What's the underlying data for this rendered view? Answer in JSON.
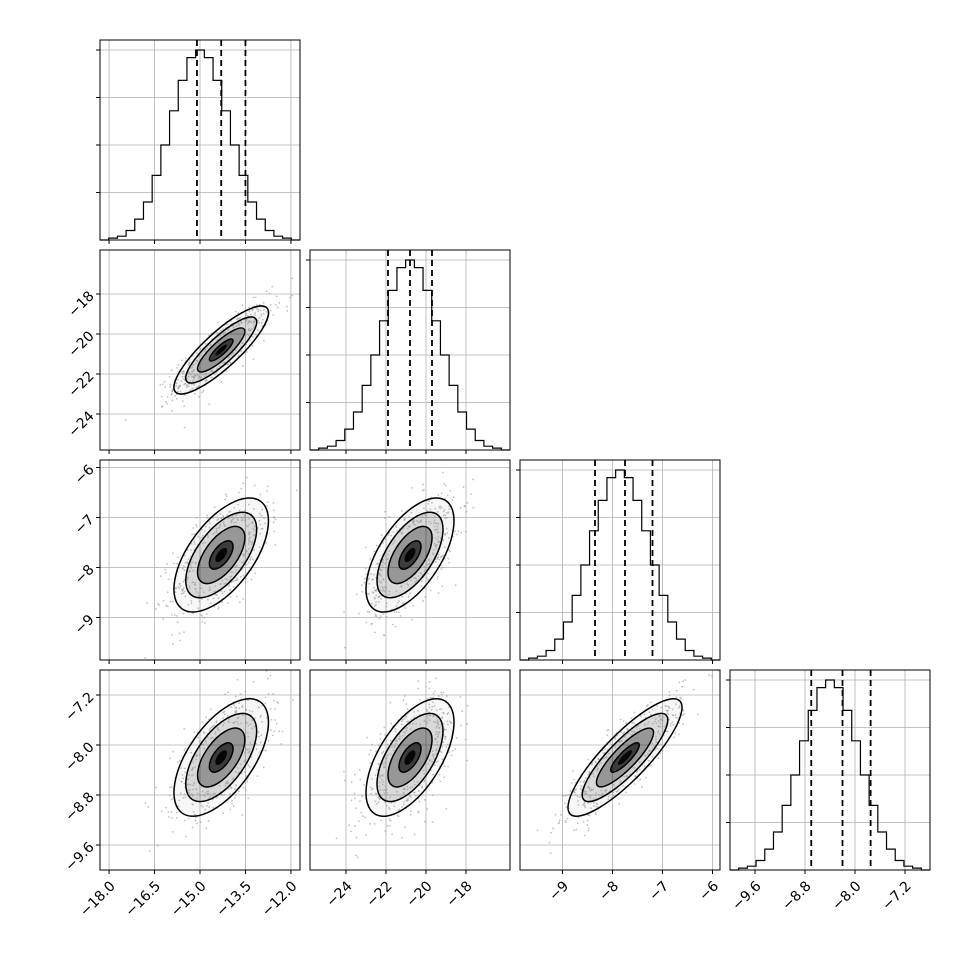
{
  "chart_data": {
    "type": "corner",
    "grid": true,
    "variables": [
      {
        "range": [
          -18.3,
          -11.7
        ],
        "ticks": [
          -18.0,
          -16.5,
          -15.0,
          -13.5,
          -12.0
        ],
        "tick_labels": [
          "−18.0",
          "−16.5",
          "−15.0",
          "−13.5",
          "−12.0"
        ],
        "quantiles": [
          -15.1,
          -14.3,
          -13.5
        ],
        "median": -14.3,
        "sigma": 0.78
      },
      {
        "range": [
          -25.8,
          -15.8
        ],
        "ticks": [
          -24,
          -22,
          -20,
          -18
        ],
        "tick_labels": [
          "−24",
          "−22",
          "−20",
          "−18"
        ],
        "quantiles": [
          -21.9,
          -20.8,
          -19.7
        ],
        "median": -20.8,
        "sigma": 1.1
      },
      {
        "range": [
          -9.85,
          -5.85
        ],
        "ticks": [
          -9,
          -8,
          -7,
          -6
        ],
        "tick_labels": [
          "−9",
          "−8",
          "−7",
          "−6"
        ],
        "quantiles": [
          -8.35,
          -7.75,
          -7.2
        ],
        "median": -7.75,
        "sigma": 0.57
      },
      {
        "range": [
          -10.0,
          -6.8
        ],
        "ticks": [
          -9.6,
          -8.8,
          -8.0,
          -7.2
        ],
        "tick_labels": [
          "−9.6",
          "−8.8",
          "−8.0",
          "−7.2"
        ],
        "quantiles": [
          -8.7,
          -8.2,
          -7.75
        ],
        "median": -8.2,
        "sigma": 0.47
      }
    ],
    "hist_counts": [
      [
        0.0,
        0.01,
        0.02,
        0.05,
        0.11,
        0.2,
        0.34,
        0.5,
        0.68,
        0.84,
        0.96,
        1.0,
        0.96,
        0.84,
        0.68,
        0.5,
        0.34,
        0.2,
        0.11,
        0.05,
        0.02,
        0.01,
        0.0
      ],
      [
        0.0,
        0.01,
        0.02,
        0.05,
        0.11,
        0.2,
        0.34,
        0.5,
        0.68,
        0.84,
        0.96,
        1.0,
        0.96,
        0.84,
        0.68,
        0.5,
        0.34,
        0.2,
        0.11,
        0.05,
        0.02,
        0.01,
        0.0
      ],
      [
        0.0,
        0.01,
        0.02,
        0.05,
        0.11,
        0.2,
        0.34,
        0.5,
        0.68,
        0.84,
        0.96,
        1.0,
        0.96,
        0.84,
        0.68,
        0.5,
        0.34,
        0.2,
        0.11,
        0.05,
        0.02,
        0.01,
        0.0
      ],
      [
        0.0,
        0.01,
        0.02,
        0.05,
        0.11,
        0.2,
        0.34,
        0.5,
        0.68,
        0.84,
        0.96,
        1.0,
        0.96,
        0.84,
        0.68,
        0.5,
        0.34,
        0.2,
        0.11,
        0.05,
        0.02,
        0.01,
        0.0
      ]
    ],
    "correlations": [
      {
        "row": 1,
        "col": 0,
        "rho": 0.85
      },
      {
        "row": 2,
        "col": 0,
        "rho": 0.6
      },
      {
        "row": 2,
        "col": 1,
        "rho": 0.6
      },
      {
        "row": 3,
        "col": 0,
        "rho": 0.6
      },
      {
        "row": 3,
        "col": 1,
        "rho": 0.6
      },
      {
        "row": 3,
        "col": 2,
        "rho": 0.85
      }
    ],
    "contour_levels_sigma": [
      0.5,
      1.0,
      1.5,
      2.0
    ],
    "colors": {
      "line": "#000000",
      "points": "#9a9a9a",
      "grid": "#b0b0b0",
      "density": "#000000"
    }
  }
}
